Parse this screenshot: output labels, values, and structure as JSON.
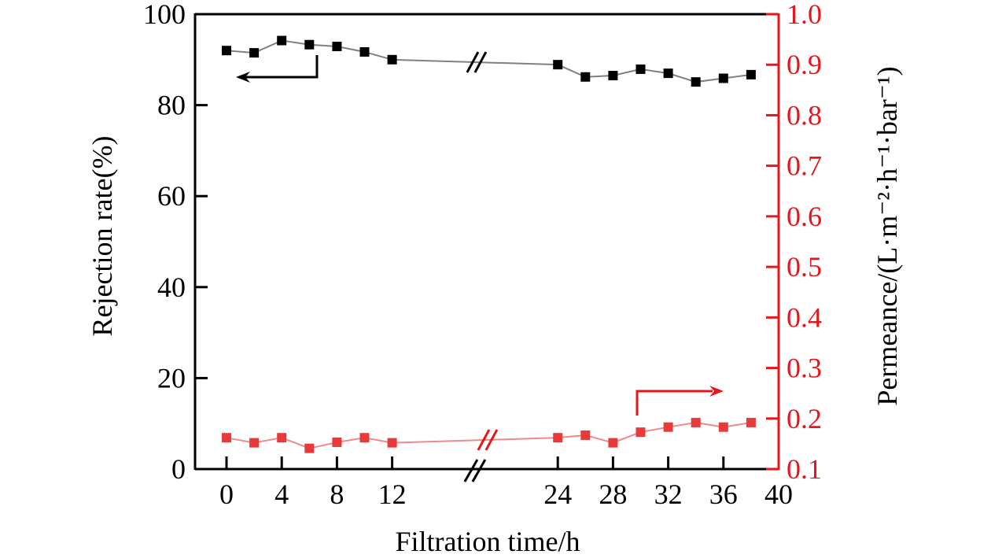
{
  "chart_data": {
    "type": "line",
    "xlabel": "Filtration time/h",
    "ylabel_left": "Rejection rate(%)",
    "ylabel_right": "Permeance/(L·m⁻²·h⁻¹·bar⁻¹)",
    "xlim": [
      -2,
      40
    ],
    "ylim_left": [
      0,
      100
    ],
    "ylim_right": [
      0.1,
      1.0
    ],
    "x_ticks": [
      "0",
      "4",
      "8",
      "12",
      "24",
      "28",
      "32",
      "36",
      "40"
    ],
    "x_tick_values": [
      0,
      4,
      8,
      12,
      24,
      28,
      32,
      36,
      40
    ],
    "y_left_ticks": [
      "0",
      "20",
      "40",
      "60",
      "80",
      "100"
    ],
    "y_right_ticks": [
      "0.1",
      "0.2",
      "0.3",
      "0.4",
      "0.5",
      "0.6",
      "0.7",
      "0.8",
      "0.9",
      "1.0"
    ],
    "axis_break_at": 18,
    "series": [
      {
        "name": "Rejection rate",
        "axis": "left",
        "color": "#000000",
        "line_color": "#808080",
        "x": [
          0,
          2,
          4,
          6,
          8,
          10,
          12,
          24,
          26,
          28,
          30,
          32,
          34,
          36,
          38
        ],
        "values": [
          92,
          91.5,
          94.2,
          93.3,
          92.9,
          91.7,
          90,
          88.9,
          86.2,
          86.5,
          87.9,
          87,
          85.1,
          85.9,
          86.7
        ]
      },
      {
        "name": "Permeance",
        "axis": "right",
        "color": "#e83a3a",
        "line_color": "#f08a8a",
        "x": [
          0,
          2,
          4,
          6,
          8,
          10,
          12,
          24,
          26,
          28,
          30,
          32,
          34,
          36,
          38
        ],
        "values": [
          0.162,
          0.152,
          0.162,
          0.141,
          0.153,
          0.162,
          0.152,
          0.162,
          0.167,
          0.152,
          0.173,
          0.183,
          0.192,
          0.183,
          0.192
        ]
      }
    ],
    "colors": {
      "left_axis": "#000000",
      "right_axis": "#e8161b"
    }
  }
}
